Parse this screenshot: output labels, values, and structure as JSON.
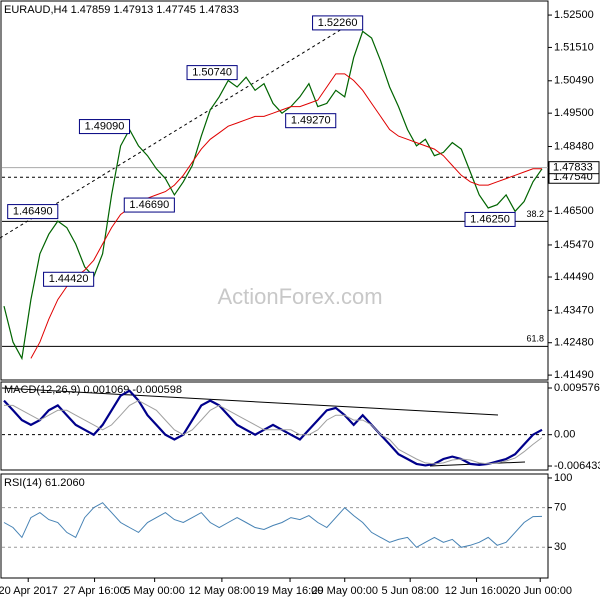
{
  "chart_data": [
    {
      "type": "line",
      "title": "EURAUD,H4  1.47859 1.47913 1.47745 1.47833",
      "watermark": "ActionForex.com",
      "ylim": [
        1.4134,
        1.5293
      ],
      "yticks": [
        {
          "value": 1.525,
          "label": "1.52500"
        },
        {
          "value": 1.5151,
          "label": "1.51510"
        },
        {
          "value": 1.5049,
          "label": "1.50490"
        },
        {
          "value": 1.495,
          "label": "1.49500"
        },
        {
          "value": 1.4848,
          "label": "1.48480"
        },
        {
          "value": 1.4749,
          "label": "1.47490"
        },
        {
          "value": 1.465,
          "label": "1.46500"
        },
        {
          "value": 1.4547,
          "label": "1.45470"
        },
        {
          "value": 1.4449,
          "label": "1.44490"
        },
        {
          "value": 1.4347,
          "label": "1.43470"
        },
        {
          "value": 1.4248,
          "label": "1.42480"
        },
        {
          "value": 1.4149,
          "label": "1.41490"
        }
      ],
      "xticks": [
        {
          "value": 2.7,
          "label": "20 Apr 2017"
        },
        {
          "value": 10.1,
          "label": "27 Apr 16:00"
        },
        {
          "value": 16.8,
          "label": "5 May 00:00"
        },
        {
          "value": 24.3,
          "label": "12 May 08:00"
        },
        {
          "value": 31.9,
          "label": "19 May 16:00"
        },
        {
          "value": 38.0,
          "label": "29 May 00:00"
        },
        {
          "value": 45.3,
          "label": "5 Jun 08:00"
        },
        {
          "value": 52.7,
          "label": "12 Jun 16:00"
        },
        {
          "value": 59.8,
          "label": "20 Jun 00:00"
        }
      ],
      "series": [
        {
          "name": "Price",
          "color": "#006400",
          "width": 1.2,
          "values": [
            1.436,
            1.425,
            1.42,
            1.438,
            1.452,
            1.458,
            1.462,
            1.46,
            1.455,
            1.448,
            1.445,
            1.452,
            1.47,
            1.485,
            1.49,
            1.485,
            1.482,
            1.478,
            1.475,
            1.47,
            1.474,
            1.479,
            1.488,
            1.496,
            1.5,
            1.505,
            1.503,
            1.506,
            1.502,
            1.504,
            1.498,
            1.495,
            1.497,
            1.5,
            1.504,
            1.497,
            1.498,
            1.502,
            1.5,
            1.512,
            1.52,
            1.518,
            1.511,
            1.503,
            1.497,
            1.49,
            1.485,
            1.487,
            1.482,
            1.483,
            1.486,
            1.484,
            1.477,
            1.47,
            1.466,
            1.467,
            1.47,
            1.465,
            1.468,
            1.474,
            1.478
          ]
        },
        {
          "name": "MA",
          "color": "#e00000",
          "width": 1,
          "values": [
            null,
            null,
            null,
            1.42,
            1.425,
            1.432,
            1.438,
            1.442,
            1.445,
            1.447,
            1.45,
            1.455,
            1.46,
            1.464,
            1.466,
            1.468,
            1.469,
            1.47,
            1.471,
            1.473,
            1.476,
            1.48,
            1.484,
            1.487,
            1.489,
            1.491,
            1.492,
            1.493,
            1.494,
            1.494,
            1.495,
            1.496,
            1.497,
            1.497,
            1.498,
            1.499,
            1.503,
            1.507,
            1.507,
            1.505,
            1.502,
            1.498,
            1.494,
            1.49,
            1.488,
            1.487,
            1.486,
            1.485,
            1.484,
            1.482,
            1.479,
            1.476,
            1.474,
            1.473,
            1.473,
            1.474,
            1.475,
            1.476,
            1.477,
            1.478,
            1.478
          ]
        }
      ],
      "annotations": [
        {
          "label": "1.52260",
          "value": 1.5226,
          "x": 40
        },
        {
          "label": "1.50740",
          "value": 1.5074,
          "x": 26
        },
        {
          "label": "1.49090",
          "value": 1.4909,
          "x": 14
        },
        {
          "label": "1.49270",
          "value": 1.4927,
          "x": 37
        },
        {
          "label": "1.46490",
          "value": 1.4649,
          "x": 6
        },
        {
          "label": "1.44420",
          "value": 1.4442,
          "x": 10
        },
        {
          "label": "1.46690",
          "value": 1.4669,
          "x": 19
        },
        {
          "label": "1.46250",
          "value": 1.4625,
          "x": 57
        }
      ],
      "levels": [
        {
          "label": "38.2",
          "value": 1.4619,
          "style": "solid",
          "box": false
        },
        {
          "label": "61.8",
          "value": 1.4237,
          "style": "solid",
          "box": false
        },
        {
          "label": "1.47540",
          "value": 1.4754,
          "style": "dashed",
          "box": true
        },
        {
          "label": "1.47833",
          "value": 1.47833,
          "style": "solid",
          "box": true
        }
      ]
    },
    {
      "type": "line",
      "title": "MACD(12,26,9) 0.001069 -0.000598",
      "ylim": [
        -0.00725,
        0.01081
      ],
      "yticks": [
        0.009576,
        {
          "value": 0,
          "label": "0.00"
        },
        -0.006433
      ],
      "zero_line": true,
      "series": [
        {
          "name": "MACD",
          "color": "#00008b",
          "width": 2.2,
          "values": [
            0.007,
            0.005,
            0.003,
            0.002,
            0.003,
            0.005,
            0.006,
            0.004,
            0.002,
            0.001,
            0.0,
            0.002,
            0.005,
            0.008,
            0.009,
            0.007,
            0.004,
            0.002,
            0.0,
            -0.001,
            0.0,
            0.003,
            0.006,
            0.007,
            0.006,
            0.004,
            0.002,
            0.001,
            0.0,
            0.001,
            0.002,
            0.001,
            0.0,
            -0.001,
            0.001,
            0.003,
            0.005,
            0.0055,
            0.004,
            0.002,
            0.004,
            0.002,
            0.0,
            -0.002,
            -0.004,
            -0.005,
            -0.006,
            -0.0063,
            -0.006,
            -0.005,
            -0.0045,
            -0.005,
            -0.006,
            -0.0062,
            -0.006,
            -0.0055,
            -0.005,
            -0.004,
            -0.002,
            0.0,
            0.001
          ]
        },
        {
          "name": "Signal",
          "color": "#a0a0a0",
          "width": 1,
          "values": [
            0.006,
            0.006,
            0.005,
            0.004,
            0.003,
            0.004,
            0.005,
            0.005,
            0.004,
            0.003,
            0.002,
            0.001,
            0.002,
            0.004,
            0.006,
            0.007,
            0.006,
            0.005,
            0.003,
            0.001,
            0.0,
            0.001,
            0.003,
            0.005,
            0.006,
            0.005,
            0.004,
            0.003,
            0.002,
            0.001,
            0.001,
            0.001,
            0.001,
            0.0,
            0.0,
            0.001,
            0.003,
            0.004,
            0.004,
            0.003,
            0.003,
            0.002,
            0.0,
            -0.001,
            -0.003,
            -0.004,
            -0.005,
            -0.0058,
            -0.006,
            -0.0058,
            -0.0052,
            -0.005,
            -0.0052,
            -0.0058,
            -0.006,
            -0.0058,
            -0.0054,
            -0.0048,
            -0.0035,
            -0.002,
            -0.0006
          ]
        }
      ]
    },
    {
      "type": "line",
      "title": "RSI(14) 61.2060",
      "ylim": [
        -1,
        104
      ],
      "yticks": [
        100,
        70,
        30
      ],
      "dashed_levels": [
        70,
        30
      ],
      "series": [
        {
          "name": "RSI",
          "color": "#4682b4",
          "width": 1,
          "values": [
            55,
            50,
            40,
            60,
            65,
            58,
            55,
            45,
            40,
            60,
            70,
            75,
            65,
            55,
            50,
            45,
            55,
            60,
            65,
            58,
            55,
            60,
            65,
            55,
            50,
            55,
            60,
            55,
            50,
            48,
            52,
            55,
            60,
            58,
            62,
            55,
            50,
            60,
            70,
            62,
            55,
            45,
            40,
            35,
            38,
            40,
            30,
            35,
            40,
            35,
            38,
            30,
            32,
            35,
            40,
            32,
            35,
            45,
            55,
            61,
            61.2
          ]
        }
      ]
    }
  ]
}
